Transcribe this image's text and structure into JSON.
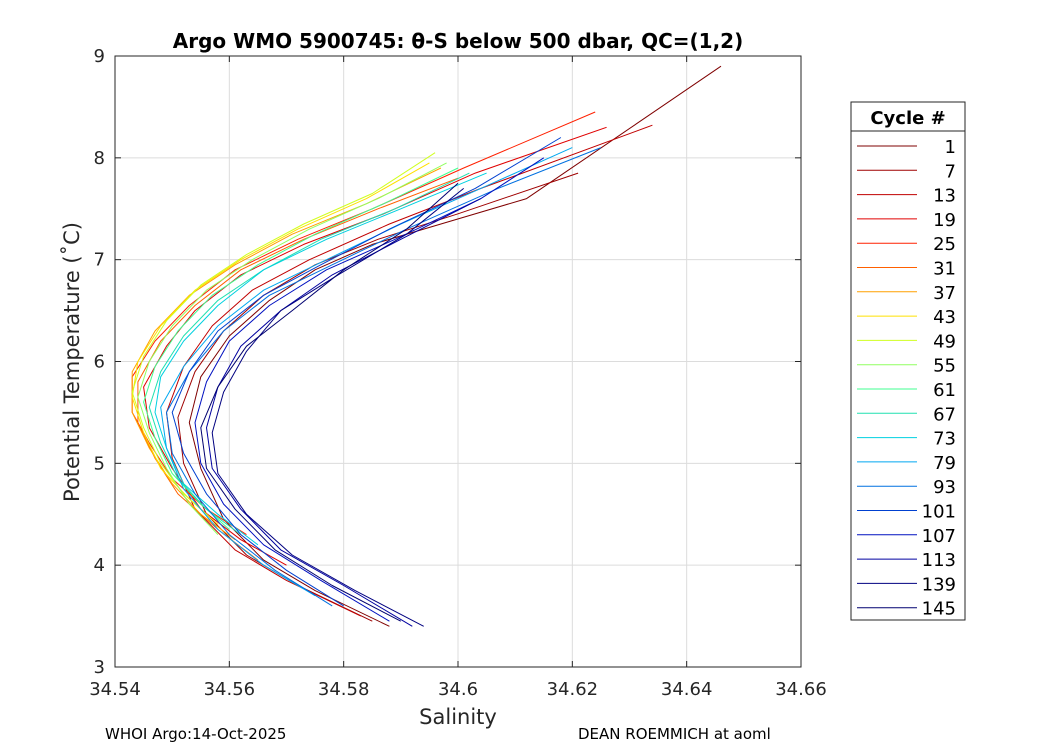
{
  "chart_data": {
    "type": "line",
    "title": "Argo WMO 5900745: θ-S below 500 dbar,  QC=(1,2)",
    "xlabel": "Salinity",
    "ylabel": "Potential Temperature (˚C)",
    "xlim": [
      34.54,
      34.66
    ],
    "ylim": [
      3,
      9
    ],
    "x_ticks": [
      34.54,
      34.56,
      34.58,
      34.6,
      34.62,
      34.64,
      34.66
    ],
    "x_tick_labels": [
      "34.54",
      "34.56",
      "34.58",
      "34.6",
      "34.62",
      "34.64",
      "34.66"
    ],
    "y_ticks": [
      3,
      4,
      5,
      6,
      7,
      8,
      9
    ],
    "y_tick_labels": [
      "3",
      "4",
      "5",
      "6",
      "7",
      "8",
      "9"
    ],
    "grid": true,
    "legend_title": "Cycle #",
    "legend_position": "outside-right",
    "series": [
      {
        "name": "1",
        "color": "#7f0000",
        "x": [
          34.588,
          34.575,
          34.566,
          34.559,
          34.555,
          34.553,
          34.555,
          34.56,
          34.567,
          34.575,
          34.585,
          34.597,
          34.612,
          34.646
        ],
        "y": [
          3.4,
          3.75,
          4.05,
          4.45,
          4.95,
          5.4,
          5.85,
          6.25,
          6.6,
          6.9,
          7.15,
          7.35,
          7.6,
          8.9
        ]
      },
      {
        "name": "7",
        "color": "#9f0000",
        "x": [
          34.585,
          34.572,
          34.563,
          34.556,
          34.552,
          34.551,
          34.554,
          34.559,
          34.566,
          34.575,
          34.586,
          34.6,
          34.621
        ],
        "y": [
          3.45,
          3.8,
          4.1,
          4.5,
          5.0,
          5.45,
          5.9,
          6.3,
          6.65,
          6.95,
          7.2,
          7.45,
          7.85
        ]
      },
      {
        "name": "13",
        "color": "#c00000",
        "x": [
          34.583,
          34.57,
          34.561,
          34.554,
          34.55,
          34.549,
          34.552,
          34.557,
          34.564,
          34.574,
          34.588,
          34.604,
          34.634
        ],
        "y": [
          3.5,
          3.85,
          4.15,
          4.55,
          5.05,
          5.5,
          5.95,
          6.35,
          6.7,
          7.0,
          7.35,
          7.7,
          8.32
        ]
      },
      {
        "name": "19",
        "color": "#e00000",
        "x": [
          34.57,
          34.562,
          34.555,
          34.55,
          34.546,
          34.545,
          34.549,
          34.554,
          34.562,
          34.573,
          34.587,
          34.603,
          34.626
        ],
        "y": [
          4.0,
          4.25,
          4.55,
          4.95,
          5.35,
          5.75,
          6.15,
          6.5,
          6.85,
          7.15,
          7.45,
          7.85,
          8.3
        ]
      },
      {
        "name": "25",
        "color": "#ff2000",
        "x": [
          34.563,
          34.556,
          34.55,
          34.546,
          34.543,
          34.543,
          34.547,
          34.553,
          34.561,
          34.572,
          34.585,
          34.601,
          34.624
        ],
        "y": [
          4.3,
          4.55,
          4.85,
          5.2,
          5.5,
          5.85,
          6.2,
          6.55,
          6.9,
          7.2,
          7.5,
          7.9,
          8.45
        ]
      },
      {
        "name": "31",
        "color": "#ff6000",
        "x": [
          34.565,
          34.558,
          34.551,
          34.547,
          34.544,
          34.544,
          34.548,
          34.554,
          34.562,
          34.573,
          34.586,
          34.6
        ],
        "y": [
          4.05,
          4.35,
          4.7,
          5.05,
          5.4,
          5.8,
          6.2,
          6.55,
          6.9,
          7.2,
          7.5,
          7.8
        ]
      },
      {
        "name": "37",
        "color": "#ffa000",
        "x": [
          34.561,
          34.555,
          34.55,
          34.546,
          34.543,
          34.543,
          34.547,
          34.553,
          34.561,
          34.571,
          34.584,
          34.597
        ],
        "y": [
          4.25,
          4.5,
          4.8,
          5.15,
          5.5,
          5.9,
          6.3,
          6.65,
          6.95,
          7.25,
          7.55,
          7.9
        ]
      },
      {
        "name": "43",
        "color": "#ffe000",
        "x": [
          34.558,
          34.553,
          34.548,
          34.545,
          34.543,
          34.544,
          34.548,
          34.554,
          34.562,
          34.572,
          34.584,
          34.595
        ],
        "y": [
          4.4,
          4.65,
          4.95,
          5.3,
          5.65,
          6.0,
          6.35,
          6.7,
          7.0,
          7.3,
          7.6,
          7.95
        ]
      },
      {
        "name": "49",
        "color": "#d0ff20",
        "x": [
          34.557,
          34.552,
          34.548,
          34.545,
          34.543,
          34.545,
          34.549,
          34.555,
          34.563,
          34.573,
          34.585,
          34.596
        ],
        "y": [
          4.45,
          4.7,
          5.0,
          5.35,
          5.7,
          6.05,
          6.4,
          6.75,
          7.05,
          7.35,
          7.65,
          8.05
        ]
      },
      {
        "name": "55",
        "color": "#90ff60",
        "x": [
          34.558,
          34.553,
          34.549,
          34.546,
          34.544,
          34.546,
          34.55,
          34.556,
          34.564,
          34.574,
          34.586,
          34.598
        ],
        "y": [
          4.3,
          4.6,
          4.95,
          5.3,
          5.65,
          6.0,
          6.35,
          6.7,
          7.0,
          7.3,
          7.6,
          7.95
        ]
      },
      {
        "name": "61",
        "color": "#40ff90",
        "x": [
          34.56,
          34.555,
          34.55,
          34.547,
          34.545,
          34.547,
          34.551,
          34.557,
          34.565,
          34.575,
          34.587,
          34.6
        ],
        "y": [
          4.35,
          4.6,
          4.9,
          5.25,
          5.6,
          5.95,
          6.3,
          6.65,
          6.95,
          7.25,
          7.55,
          7.9
        ]
      },
      {
        "name": "67",
        "color": "#20e0b0",
        "x": [
          34.562,
          34.556,
          34.551,
          34.548,
          34.546,
          34.548,
          34.552,
          34.558,
          34.566,
          34.576,
          34.589,
          34.602
        ],
        "y": [
          4.3,
          4.55,
          4.85,
          5.2,
          5.55,
          5.9,
          6.25,
          6.6,
          6.9,
          7.2,
          7.5,
          7.85
        ]
      },
      {
        "name": "73",
        "color": "#00d0e0",
        "x": [
          34.565,
          34.558,
          34.552,
          34.549,
          34.547,
          34.548,
          34.552,
          34.558,
          34.566,
          34.577,
          34.59,
          34.605
        ],
        "y": [
          4.2,
          4.5,
          4.8,
          5.15,
          5.5,
          5.85,
          6.2,
          6.55,
          6.9,
          7.2,
          7.5,
          7.85
        ]
      },
      {
        "name": "79",
        "color": "#00a8f0",
        "x": [
          34.575,
          34.566,
          34.558,
          34.552,
          34.549,
          34.548,
          34.552,
          34.558,
          34.566,
          34.577,
          34.59,
          34.606,
          34.62
        ],
        "y": [
          3.7,
          4.0,
          4.35,
          4.75,
          5.15,
          5.55,
          5.95,
          6.35,
          6.7,
          7.0,
          7.35,
          7.75,
          8.1
        ]
      },
      {
        "name": "93",
        "color": "#0070e0",
        "x": [
          34.578,
          34.568,
          34.56,
          34.554,
          34.55,
          34.549,
          34.553,
          34.559,
          34.567,
          34.578,
          34.591,
          34.607,
          34.625
        ],
        "y": [
          3.6,
          3.95,
          4.3,
          4.7,
          5.1,
          5.5,
          5.9,
          6.3,
          6.65,
          6.95,
          7.3,
          7.7,
          8.1
        ]
      },
      {
        "name": "101",
        "color": "#0040d0",
        "x": [
          34.58,
          34.57,
          34.562,
          34.556,
          34.552,
          34.55,
          34.553,
          34.558,
          34.566,
          34.576,
          34.588,
          34.603,
          34.618
        ],
        "y": [
          3.6,
          3.95,
          4.3,
          4.7,
          5.1,
          5.5,
          5.9,
          6.3,
          6.65,
          6.95,
          7.3,
          7.7,
          8.2
        ]
      },
      {
        "name": "107",
        "color": "#0010c0",
        "x": [
          34.588,
          34.576,
          34.566,
          34.559,
          34.555,
          34.554,
          34.556,
          34.56,
          34.567,
          34.577,
          34.589,
          34.604,
          34.615
        ],
        "y": [
          3.45,
          3.85,
          4.2,
          4.6,
          5.0,
          5.4,
          5.8,
          6.2,
          6.55,
          6.9,
          7.2,
          7.6,
          8.0
        ]
      },
      {
        "name": "113",
        "color": "#0000a0",
        "x": [
          34.592,
          34.58,
          34.569,
          34.562,
          34.557,
          34.556,
          34.558,
          34.562,
          34.569,
          34.578,
          34.59,
          34.604
        ],
        "y": [
          3.4,
          3.8,
          4.15,
          4.55,
          4.95,
          5.35,
          5.75,
          6.15,
          6.5,
          6.85,
          7.2,
          7.6
        ]
      },
      {
        "name": "139",
        "color": "#000080",
        "x": [
          34.594,
          34.582,
          34.571,
          34.563,
          34.558,
          34.557,
          34.559,
          34.563,
          34.569,
          34.579,
          34.591,
          34.601
        ],
        "y": [
          3.4,
          3.75,
          4.1,
          4.5,
          4.9,
          5.3,
          5.7,
          6.1,
          6.5,
          6.85,
          7.25,
          7.7
        ]
      },
      {
        "name": "145",
        "color": "#000070",
        "x": [
          34.59,
          34.578,
          34.568,
          34.561,
          34.556,
          34.555,
          34.558,
          34.563,
          34.571,
          34.58,
          34.591,
          34.6
        ],
        "y": [
          3.45,
          3.8,
          4.15,
          4.55,
          4.95,
          5.35,
          5.75,
          6.15,
          6.5,
          6.9,
          7.3,
          7.75
        ]
      }
    ]
  },
  "footer": {
    "left": "WHOI Argo:14-Oct-2025",
    "right": "DEAN ROEMMICH at aoml"
  }
}
